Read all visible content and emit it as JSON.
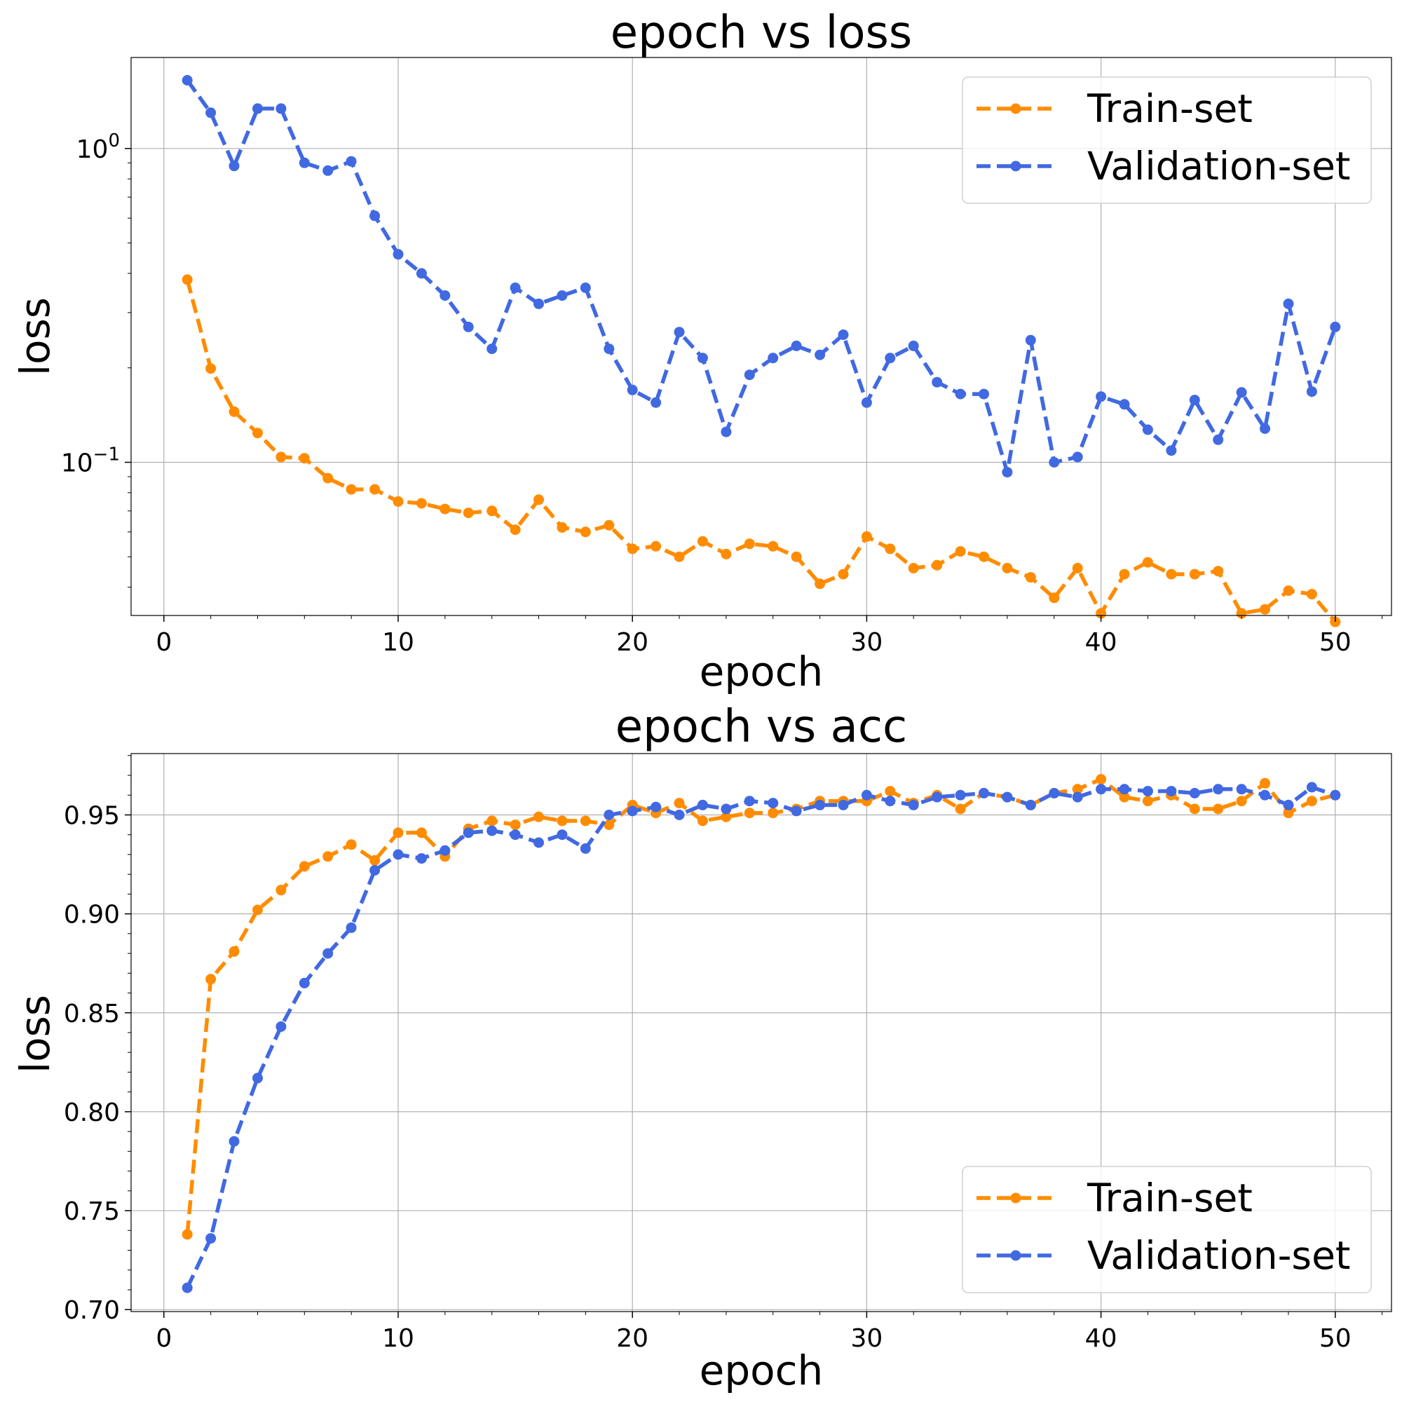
{
  "chart_data": [
    {
      "type": "line",
      "title": "epoch vs loss",
      "xlabel": "epoch",
      "ylabel": "loss",
      "yscale": "log",
      "xlim": [
        -1.4,
        52.4
      ],
      "ylim": [
        0.0325,
        1.95
      ],
      "xticks": [
        {
          "value": 0,
          "label": "0"
        },
        {
          "value": 10,
          "label": "10"
        },
        {
          "value": 20,
          "label": "20"
        },
        {
          "value": 30,
          "label": "30"
        },
        {
          "value": 40,
          "label": "40"
        },
        {
          "value": 50,
          "label": "50"
        }
      ],
      "yticks": [
        {
          "value": 0.1,
          "base": "10",
          "exp": "−1"
        },
        {
          "value": 1,
          "base": "10",
          "exp": "0"
        }
      ],
      "grid": true,
      "legend": "top-right",
      "x": [
        1,
        2,
        3,
        4,
        5,
        6,
        7,
        8,
        9,
        10,
        11,
        12,
        13,
        14,
        15,
        16,
        17,
        18,
        19,
        20,
        21,
        22,
        23,
        24,
        25,
        26,
        27,
        28,
        29,
        30,
        31,
        32,
        33,
        34,
        35,
        36,
        37,
        38,
        39,
        40,
        41,
        42,
        43,
        44,
        45,
        46,
        47,
        48,
        49,
        50
      ],
      "series": [
        {
          "name": "Train-set",
          "color": "#ff8c00",
          "values": [
            0.382,
            0.199,
            0.145,
            0.124,
            0.104,
            0.103,
            0.089,
            0.082,
            0.082,
            0.075,
            0.074,
            0.071,
            0.069,
            0.07,
            0.061,
            0.076,
            0.062,
            0.06,
            0.063,
            0.053,
            0.054,
            0.05,
            0.056,
            0.051,
            0.055,
            0.054,
            0.05,
            0.041,
            0.044,
            0.058,
            0.053,
            0.046,
            0.047,
            0.052,
            0.05,
            0.046,
            0.043,
            0.037,
            0.046,
            0.033,
            0.044,
            0.048,
            0.044,
            0.044,
            0.045,
            0.033,
            0.034,
            0.039,
            0.038,
            0.031
          ]
        },
        {
          "name": "Validation-set",
          "color": "#4169e1",
          "values": [
            1.65,
            1.3,
            0.88,
            1.34,
            1.34,
            0.9,
            0.85,
            0.91,
            0.61,
            0.46,
            0.4,
            0.34,
            0.27,
            0.23,
            0.36,
            0.32,
            0.34,
            0.36,
            0.23,
            0.17,
            0.155,
            0.26,
            0.215,
            0.125,
            0.19,
            0.215,
            0.235,
            0.22,
            0.255,
            0.155,
            0.215,
            0.235,
            0.18,
            0.165,
            0.165,
            0.093,
            0.245,
            0.1,
            0.104,
            0.162,
            0.153,
            0.127,
            0.109,
            0.158,
            0.118,
            0.167,
            0.128,
            0.32,
            0.168,
            0.27
          ]
        }
      ]
    },
    {
      "type": "line",
      "title": "epoch vs acc",
      "xlabel": "epoch",
      "ylabel": "loss",
      "yscale": "linear",
      "xlim": [
        -1.4,
        52.4
      ],
      "ylim": [
        0.699,
        0.981
      ],
      "xticks": [
        {
          "value": 0,
          "label": "0"
        },
        {
          "value": 10,
          "label": "10"
        },
        {
          "value": 20,
          "label": "20"
        },
        {
          "value": 30,
          "label": "30"
        },
        {
          "value": 40,
          "label": "40"
        },
        {
          "value": 50,
          "label": "50"
        }
      ],
      "yticks": [
        {
          "value": 0.7,
          "label": "0.70"
        },
        {
          "value": 0.75,
          "label": "0.75"
        },
        {
          "value": 0.8,
          "label": "0.80"
        },
        {
          "value": 0.85,
          "label": "0.85"
        },
        {
          "value": 0.9,
          "label": "0.90"
        },
        {
          "value": 0.95,
          "label": "0.95"
        }
      ],
      "grid": true,
      "legend": "lower-right",
      "x": [
        1,
        2,
        3,
        4,
        5,
        6,
        7,
        8,
        9,
        10,
        11,
        12,
        13,
        14,
        15,
        16,
        17,
        18,
        19,
        20,
        21,
        22,
        23,
        24,
        25,
        26,
        27,
        28,
        29,
        30,
        31,
        32,
        33,
        34,
        35,
        36,
        37,
        38,
        39,
        40,
        41,
        42,
        43,
        44,
        45,
        46,
        47,
        48,
        49,
        50
      ],
      "series": [
        {
          "name": "Train-set",
          "color": "#ff8c00",
          "values": [
            0.738,
            0.867,
            0.881,
            0.902,
            0.912,
            0.924,
            0.929,
            0.935,
            0.927,
            0.941,
            0.941,
            0.929,
            0.943,
            0.947,
            0.945,
            0.949,
            0.947,
            0.947,
            0.945,
            0.955,
            0.951,
            0.956,
            0.947,
            0.949,
            0.951,
            0.951,
            0.953,
            0.957,
            0.957,
            0.957,
            0.962,
            0.956,
            0.96,
            0.953,
            0.961,
            0.959,
            0.955,
            0.961,
            0.963,
            0.968,
            0.959,
            0.957,
            0.96,
            0.953,
            0.953,
            0.957,
            0.966,
            0.951,
            0.957,
            0.96
          ]
        },
        {
          "name": "Validation-set",
          "color": "#4169e1",
          "values": [
            0.711,
            0.736,
            0.785,
            0.817,
            0.843,
            0.865,
            0.88,
            0.893,
            0.922,
            0.93,
            0.928,
            0.932,
            0.941,
            0.942,
            0.94,
            0.936,
            0.94,
            0.933,
            0.95,
            0.952,
            0.954,
            0.95,
            0.955,
            0.953,
            0.957,
            0.956,
            0.952,
            0.955,
            0.955,
            0.96,
            0.957,
            0.955,
            0.959,
            0.96,
            0.961,
            0.959,
            0.955,
            0.961,
            0.959,
            0.963,
            0.963,
            0.962,
            0.962,
            0.961,
            0.963,
            0.963,
            0.96,
            0.955,
            0.964,
            0.96
          ]
        }
      ]
    }
  ]
}
